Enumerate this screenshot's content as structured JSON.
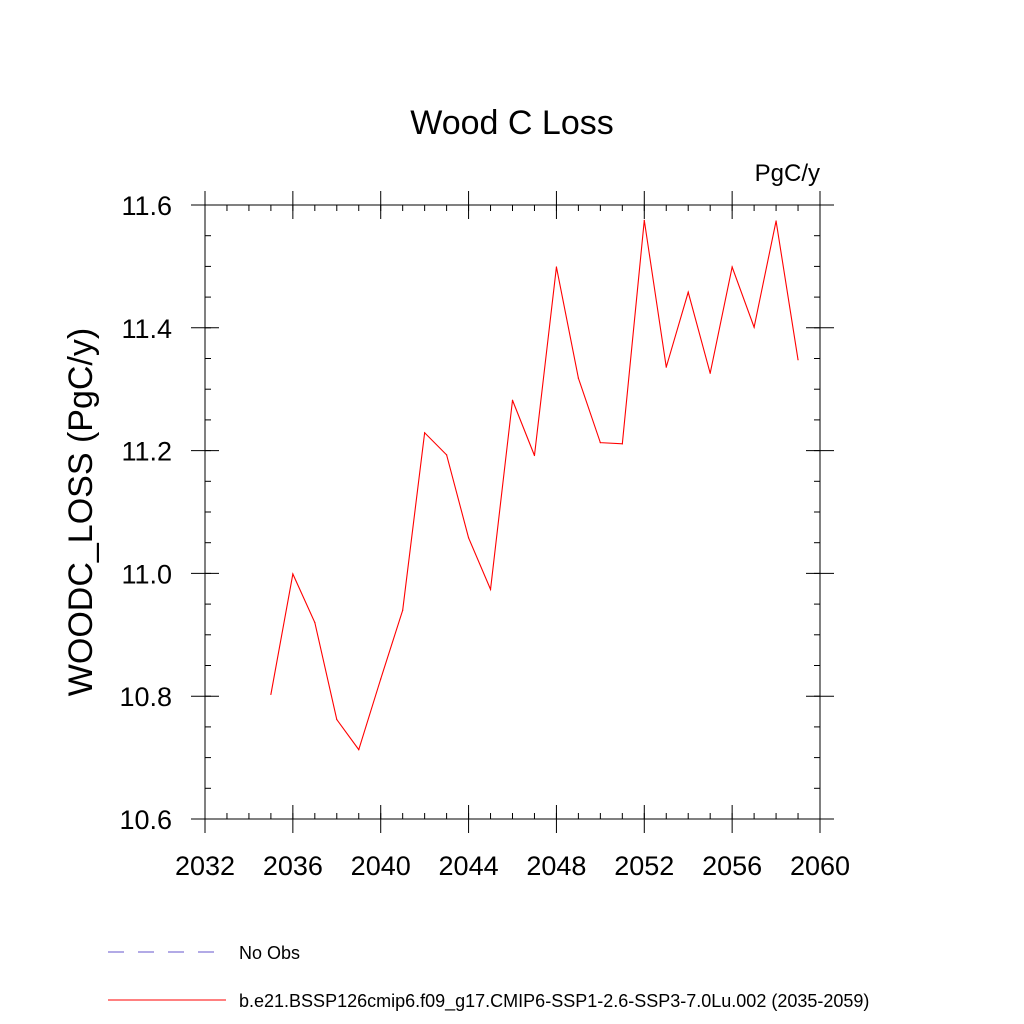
{
  "chart_data": {
    "type": "line",
    "title": "Wood C Loss",
    "units": "PgC/y",
    "ylabel": "WOODC_LOSS  (PgC/y)",
    "xlabel": "",
    "xlim": [
      2032,
      2060
    ],
    "ylim": [
      10.6,
      11.6
    ],
    "x_ticks": [
      2032,
      2036,
      2040,
      2044,
      2048,
      2052,
      2056,
      2060
    ],
    "y_ticks": [
      "10.6",
      "10.8",
      "11.0",
      "11.2",
      "11.4",
      "11.6"
    ],
    "x_minor_step": 1,
    "y_minor_step": 0.05,
    "grid": false,
    "legend_position": "bottom-left",
    "series": [
      {
        "name": "b.e21.BSSP126cmip6.f09_g17.CMIP6-SSP1-2.6-SSP3-7.0Lu.002 (2035-2059)",
        "color": "#ff0000",
        "style": "solid",
        "x": [
          2035,
          2036,
          2037,
          2038,
          2039,
          2040,
          2041,
          2042,
          2043,
          2044,
          2045,
          2046,
          2047,
          2048,
          2049,
          2050,
          2051,
          2052,
          2053,
          2054,
          2055,
          2056,
          2057,
          2058,
          2059
        ],
        "values": [
          10.803,
          10.999,
          10.92,
          10.762,
          10.713,
          10.828,
          10.94,
          11.229,
          11.193,
          11.058,
          10.974,
          11.282,
          11.192,
          11.499,
          11.318,
          11.213,
          11.211,
          11.575,
          11.336,
          11.458,
          11.326,
          11.499,
          11.401,
          11.574,
          11.348
        ]
      }
    ],
    "legend": [
      {
        "label": "No Obs",
        "color": "#6655cc",
        "style": "dashed"
      },
      {
        "label": "b.e21.BSSP126cmip6.f09_g17.CMIP6-SSP1-2.6-SSP3-7.0Lu.002 (2035-2059)",
        "color": "#ff0000",
        "style": "solid"
      }
    ]
  }
}
